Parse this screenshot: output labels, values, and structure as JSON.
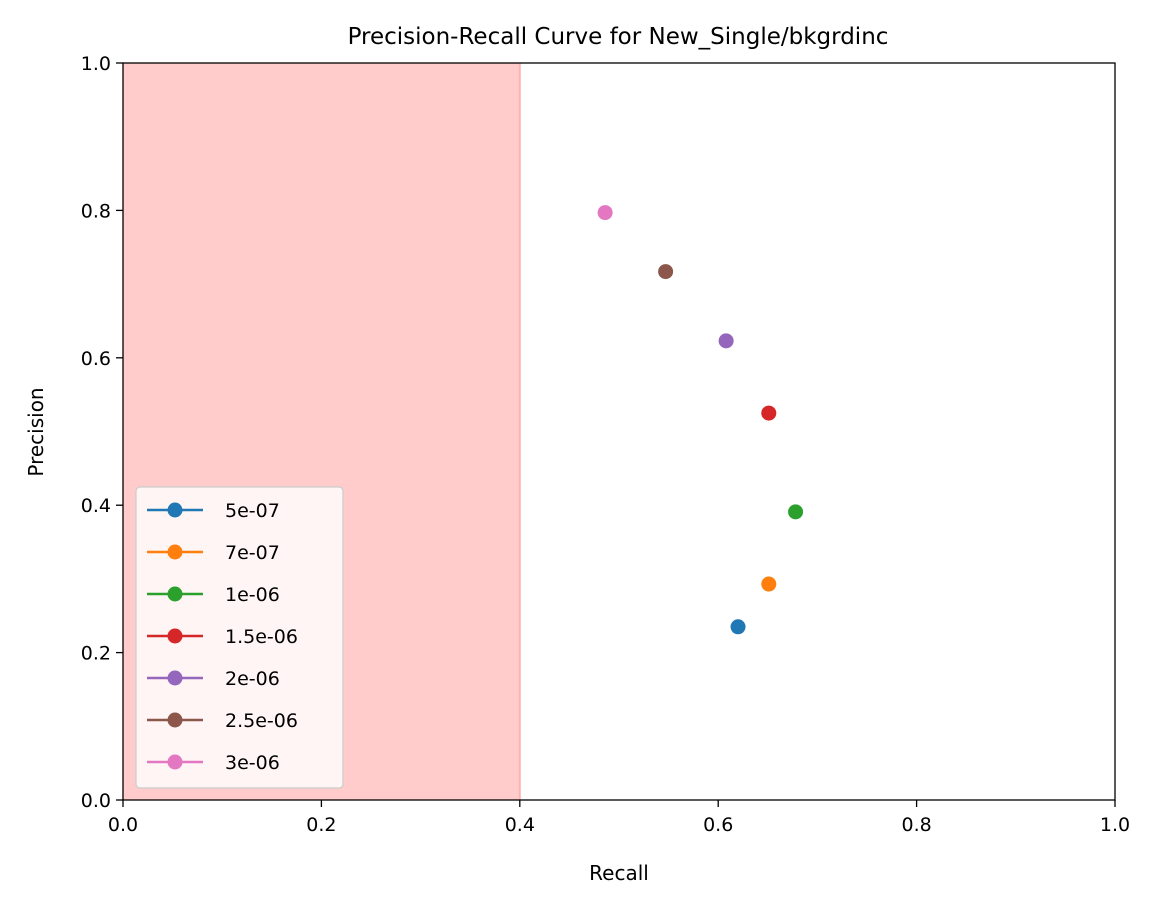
{
  "chart_data": {
    "type": "scatter",
    "title": "Precision-Recall Curve for New_Single/bkgrdinc",
    "xlabel": "Recall",
    "ylabel": "Precision",
    "xlim": [
      0.0,
      1.0
    ],
    "ylim": [
      0.0,
      1.0
    ],
    "xticks": [
      "0.0",
      "0.2",
      "0.4",
      "0.6",
      "0.8",
      "1.0"
    ],
    "yticks": [
      "0.0",
      "0.2",
      "0.4",
      "0.6",
      "0.8",
      "1.0"
    ],
    "grid": false,
    "legend_position": "lower-left",
    "shaded_region": {
      "x_from": 0.0,
      "x_to": 0.4,
      "color": "#ffcccb"
    },
    "series": [
      {
        "name": "5e-07",
        "color": "#1f77b4",
        "x": [
          0.62
        ],
        "y": [
          0.235
        ]
      },
      {
        "name": "7e-07",
        "color": "#ff7f0e",
        "x": [
          0.651
        ],
        "y": [
          0.293
        ]
      },
      {
        "name": "1e-06",
        "color": "#2ca02c",
        "x": [
          0.678
        ],
        "y": [
          0.391
        ]
      },
      {
        "name": "1.5e-06",
        "color": "#d62728",
        "x": [
          0.651
        ],
        "y": [
          0.525
        ]
      },
      {
        "name": "2e-06",
        "color": "#9467bd",
        "x": [
          0.608
        ],
        "y": [
          0.623
        ]
      },
      {
        "name": "2.5e-06",
        "color": "#8c564b",
        "x": [
          0.547
        ],
        "y": [
          0.717
        ]
      },
      {
        "name": "3e-06",
        "color": "#e377c2",
        "x": [
          0.486
        ],
        "y": [
          0.797
        ]
      }
    ]
  }
}
